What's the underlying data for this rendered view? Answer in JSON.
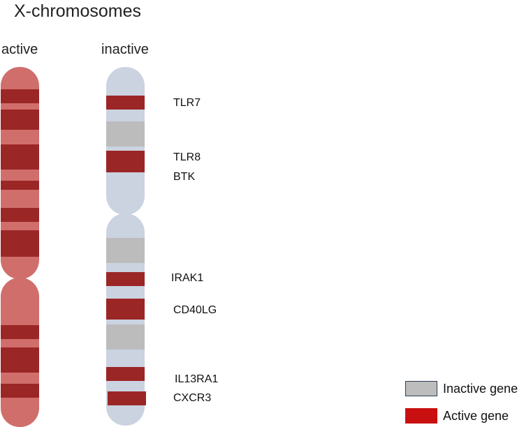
{
  "title": "X-chromosomes",
  "columns": {
    "active_label": "active",
    "inactive_label": "inactive"
  },
  "genes": [
    {
      "name": "TLR7",
      "status": "active"
    },
    {
      "name": "TLR8",
      "status": "active"
    },
    {
      "name": "BTK",
      "status": "active"
    },
    {
      "name": "IRAK1",
      "status": "active"
    },
    {
      "name": "CD40LG",
      "status": "active"
    },
    {
      "name": "IL13RA1",
      "status": "active"
    },
    {
      "name": "CXCR3",
      "status": "active"
    }
  ],
  "legend": {
    "inactive_label": "Inactive gene",
    "active_label": "Active gene"
  },
  "colors": {
    "active_chromosome": "#d06e6b",
    "active_band": "#9b2626",
    "inactive_chromosome": "#cbd3e1",
    "inactive_band_gray": "#bcbcbc",
    "legend_inactive": "#bdbdbd",
    "legend_inactive_border": "#2e3f55",
    "legend_active": "#c91010"
  }
}
